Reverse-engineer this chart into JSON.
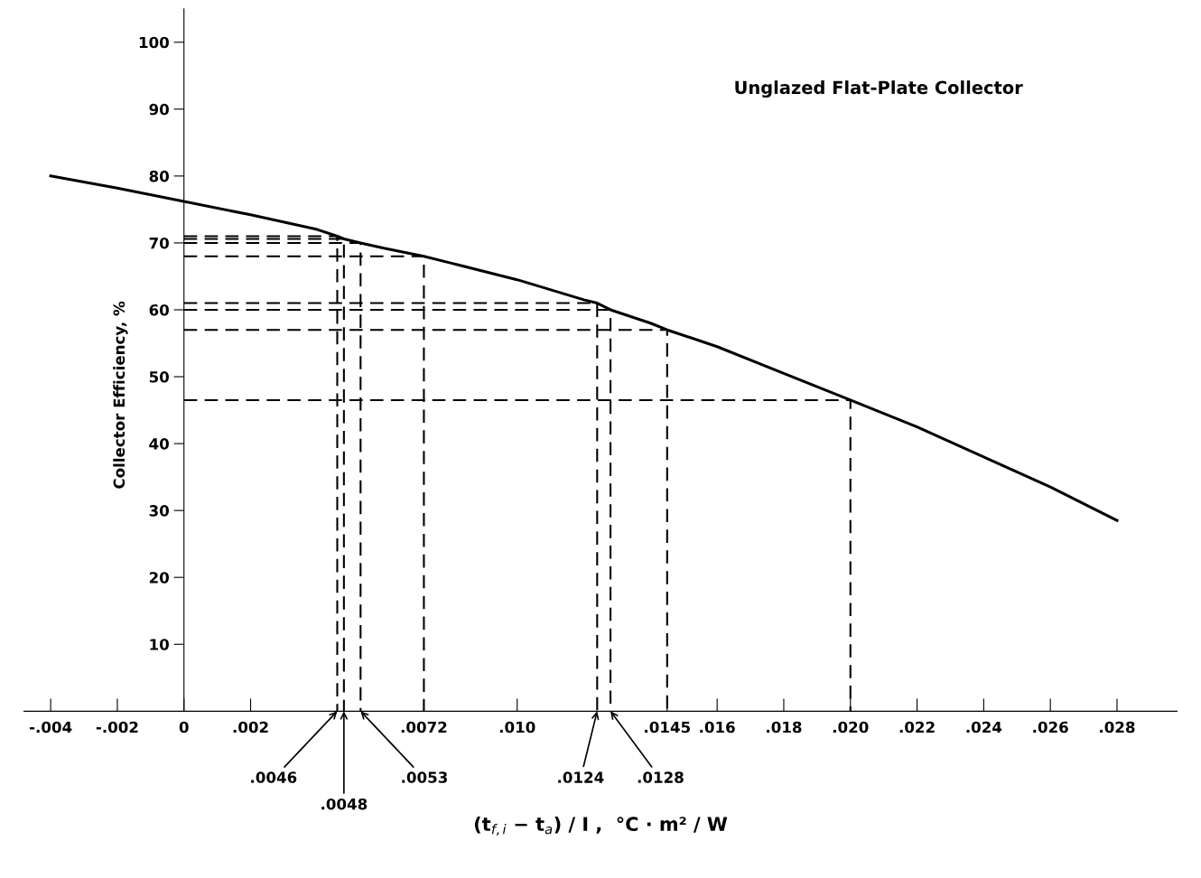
{
  "chart_data": {
    "type": "line",
    "title": "Unglazed Flat-Plate Collector",
    "xlabel": "(t$_{f,i}$ − t$_{a}$) / I ,  °C · m² / W",
    "ylabel": "Collector Efficiency, %",
    "xlim": [
      -0.0048,
      0.0298
    ],
    "ylim": [
      0,
      105
    ],
    "xticks": [
      {
        "value": -0.004,
        "label": "-.004"
      },
      {
        "value": -0.002,
        "label": "-.002"
      },
      {
        "value": 0,
        "label": "0"
      },
      {
        "value": 0.002,
        "label": ".002"
      },
      {
        "value": 0.0072,
        "label": ".0072"
      },
      {
        "value": 0.01,
        "label": ".010"
      },
      {
        "value": 0.0145,
        "label": ".0145"
      },
      {
        "value": 0.016,
        "label": ".016"
      },
      {
        "value": 0.018,
        "label": ".018"
      },
      {
        "value": 0.02,
        "label": ".020"
      },
      {
        "value": 0.022,
        "label": ".022"
      },
      {
        "value": 0.024,
        "label": ".024"
      },
      {
        "value": 0.026,
        "label": ".026"
      },
      {
        "value": 0.028,
        "label": ".028"
      }
    ],
    "yticks": [
      10,
      20,
      30,
      40,
      50,
      60,
      70,
      80,
      90,
      100
    ],
    "marker": "none",
    "series": [
      {
        "color": "#000000",
        "line_style": "solid",
        "x": [
          -0.004,
          -0.002,
          0,
          0.002,
          0.004,
          0.0046,
          0.0048,
          0.0053,
          0.006,
          0.0072,
          0.008,
          0.01,
          0.012,
          0.0124,
          0.0128,
          0.014,
          0.0145,
          0.016,
          0.018,
          0.02,
          0.022,
          0.024,
          0.026,
          0.028
        ],
        "values": [
          80,
          78.2,
          76.2,
          74.2,
          72,
          71,
          70.6,
          70,
          69.2,
          68,
          67,
          64.5,
          61.5,
          61,
          60,
          58,
          57,
          54.5,
          50.5,
          46.5,
          42.5,
          38,
          33.5,
          28.5
        ]
      },
      {
        "color": "#000000",
        "line_style": "dashed",
        "x": [
          0,
          0.0046,
          0.0046
        ],
        "values": [
          71,
          71,
          0
        ]
      },
      {
        "color": "#000000",
        "line_style": "dashed",
        "x": [
          0,
          0.0048,
          0.0048
        ],
        "values": [
          70.6,
          70.6,
          0
        ]
      },
      {
        "color": "#000000",
        "line_style": "dashed",
        "x": [
          0,
          0.0053,
          0.0053
        ],
        "values": [
          70,
          70,
          0
        ]
      },
      {
        "color": "#000000",
        "line_style": "dashed",
        "x": [
          0,
          0.0072,
          0.0072
        ],
        "values": [
          68,
          68,
          0
        ]
      },
      {
        "color": "#000000",
        "line_style": "dashed",
        "x": [
          0,
          0.0124,
          0.0124
        ],
        "values": [
          61,
          61,
          0
        ]
      },
      {
        "color": "#000000",
        "line_style": "dashed",
        "x": [
          0,
          0.0128,
          0.0128
        ],
        "values": [
          60,
          60,
          0
        ]
      },
      {
        "color": "#000000",
        "line_style": "dashed",
        "x": [
          0,
          0.0145,
          0.0145
        ],
        "values": [
          57,
          57,
          0
        ]
      },
      {
        "color": "#000000",
        "line_style": "dashed",
        "x": [
          0,
          0.02,
          0.02
        ],
        "values": [
          46.5,
          46.5,
          0
        ]
      }
    ],
    "annotations": [
      {
        "text": ".0046",
        "x": 0.0046,
        "y": 0
      },
      {
        "text": ".0048",
        "x": 0.0048,
        "y": 0
      },
      {
        "text": ".0053",
        "x": 0.0053,
        "y": 0
      },
      {
        "text": ".0124",
        "x": 0.0124,
        "y": 0
      },
      {
        "text": ".0128",
        "x": 0.0128,
        "y": 0
      }
    ]
  }
}
